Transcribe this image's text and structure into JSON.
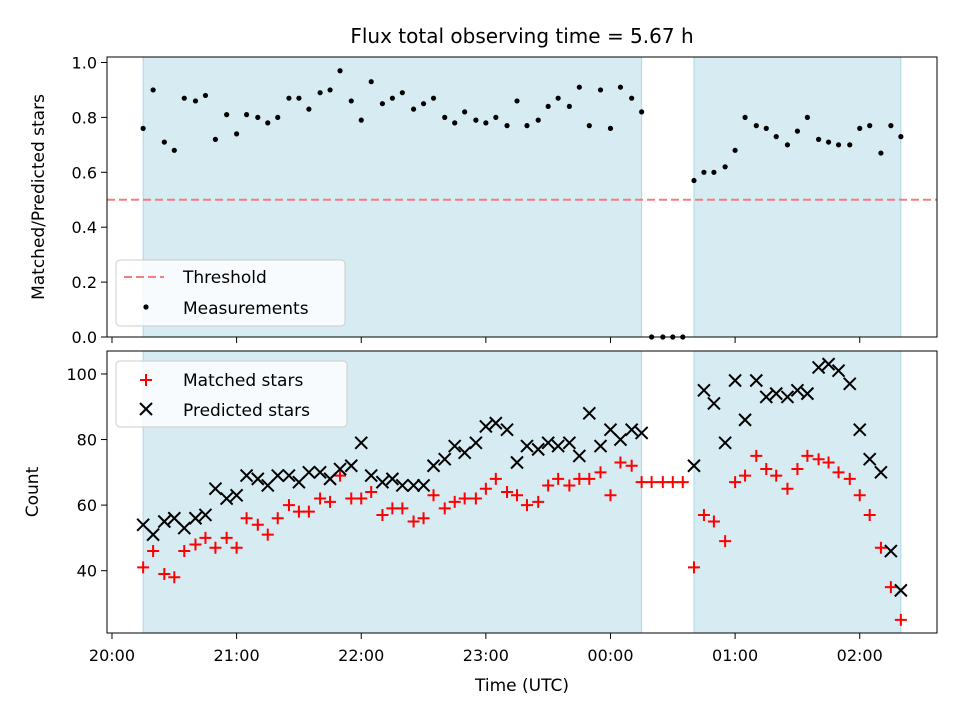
{
  "chart_data": {
    "title": "Flux total observing time = 5.67 h",
    "colors": {
      "observing_span": "#add8e6",
      "threshold": "#f08080",
      "measurements": "#000000",
      "matched": "#ff0000",
      "predicted": "#000000"
    },
    "x_axis": {
      "label": "Time (UTC)",
      "unit": "hours since 20:00 UTC",
      "range": [
        -0.04,
        6.62
      ],
      "ticks": [
        {
          "value": 0,
          "label": "20:00"
        },
        {
          "value": 1,
          "label": "21:00"
        },
        {
          "value": 2,
          "label": "22:00"
        },
        {
          "value": 3,
          "label": "23:00"
        },
        {
          "value": 4,
          "label": "00:00"
        },
        {
          "value": 5,
          "label": "01:00"
        },
        {
          "value": 6,
          "label": "02:00"
        }
      ]
    },
    "observing_spans": [
      [
        0.25,
        4.25
      ],
      [
        4.67,
        6.33
      ]
    ],
    "top_panel": {
      "type": "scatter",
      "ylabel": "Matched/Predicted stars",
      "ylim": [
        0,
        1.02
      ],
      "yticks": [
        {
          "value": 0,
          "label": "0.0"
        },
        {
          "value": 0.2,
          "label": "0.2"
        },
        {
          "value": 0.4,
          "label": "0.4"
        },
        {
          "value": 0.6,
          "label": "0.6"
        },
        {
          "value": 0.8,
          "label": "0.8"
        },
        {
          "value": 1.0,
          "label": "1.0"
        }
      ],
      "threshold": 0.5,
      "legend": {
        "position": "lower-left",
        "entries": [
          {
            "name": "Threshold",
            "marker": "dashed-line"
          },
          {
            "name": "Measurements",
            "marker": "dot"
          }
        ]
      },
      "measurements": {
        "x": [
          0.25,
          0.33,
          0.42,
          0.5,
          0.58,
          0.67,
          0.75,
          0.83,
          0.92,
          1.0,
          1.08,
          1.17,
          1.25,
          1.33,
          1.42,
          1.5,
          1.58,
          1.67,
          1.75,
          1.83,
          1.92,
          2.0,
          2.08,
          2.17,
          2.25,
          2.33,
          2.42,
          2.5,
          2.58,
          2.67,
          2.75,
          2.83,
          2.92,
          3.0,
          3.08,
          3.17,
          3.25,
          3.33,
          3.42,
          3.5,
          3.58,
          3.67,
          3.75,
          3.83,
          3.92,
          4.0,
          4.08,
          4.17,
          4.25,
          4.33,
          4.42,
          4.5,
          4.58,
          4.67,
          4.75,
          4.83,
          4.92,
          5.0,
          5.08,
          5.17,
          5.25,
          5.33,
          5.42,
          5.5,
          5.58,
          5.67,
          5.75,
          5.83,
          5.92,
          6.0,
          6.08,
          6.17,
          6.25,
          6.33
        ],
        "y": [
          0.76,
          0.9,
          0.71,
          0.68,
          0.87,
          0.86,
          0.88,
          0.72,
          0.81,
          0.74,
          0.81,
          0.8,
          0.78,
          0.8,
          0.87,
          0.87,
          0.83,
          0.89,
          0.9,
          0.97,
          0.86,
          0.79,
          0.93,
          0.85,
          0.87,
          0.89,
          0.83,
          0.85,
          0.87,
          0.8,
          0.78,
          0.82,
          0.79,
          0.78,
          0.8,
          0.77,
          0.86,
          0.77,
          0.79,
          0.84,
          0.87,
          0.84,
          0.91,
          0.77,
          0.9,
          0.76,
          0.91,
          0.87,
          0.82,
          0.0,
          0.0,
          0.0,
          0.0,
          0.57,
          0.6,
          0.6,
          0.62,
          0.68,
          0.8,
          0.77,
          0.76,
          0.73,
          0.7,
          0.75,
          0.8,
          0.72,
          0.71,
          0.7,
          0.7,
          0.76,
          0.77,
          0.67,
          0.77,
          0.73
        ]
      }
    },
    "bottom_panel": {
      "type": "scatter",
      "ylabel": "Count",
      "ylim": [
        21,
        107
      ],
      "yticks": [
        {
          "value": 40,
          "label": "40"
        },
        {
          "value": 60,
          "label": "60"
        },
        {
          "value": 80,
          "label": "80"
        },
        {
          "value": 100,
          "label": "100"
        }
      ],
      "legend": {
        "position": "upper-left",
        "entries": [
          {
            "name": "Matched stars",
            "marker": "plus"
          },
          {
            "name": "Predicted stars",
            "marker": "x"
          }
        ]
      },
      "series": [
        {
          "name": "Matched stars",
          "marker": "plus",
          "x": [
            0.25,
            0.33,
            0.42,
            0.5,
            0.58,
            0.67,
            0.75,
            0.83,
            0.92,
            1.0,
            1.08,
            1.17,
            1.25,
            1.33,
            1.42,
            1.5,
            1.58,
            1.67,
            1.75,
            1.83,
            1.92,
            2.0,
            2.08,
            2.17,
            2.25,
            2.33,
            2.42,
            2.5,
            2.58,
            2.67,
            2.75,
            2.83,
            2.92,
            3.0,
            3.08,
            3.17,
            3.25,
            3.33,
            3.42,
            3.5,
            3.58,
            3.67,
            3.75,
            3.83,
            3.92,
            4.0,
            4.08,
            4.17,
            4.25,
            4.33,
            4.42,
            4.5,
            4.58,
            4.67,
            4.75,
            4.83,
            4.92,
            5.0,
            5.08,
            5.17,
            5.25,
            5.33,
            5.42,
            5.5,
            5.58,
            5.67,
            5.75,
            5.83,
            5.92,
            6.0,
            6.08,
            6.17,
            6.25,
            6.33
          ],
          "y": [
            41,
            46,
            39,
            38,
            46,
            48,
            50,
            47,
            50,
            47,
            56,
            54,
            51,
            56,
            60,
            58,
            58,
            62,
            61,
            69,
            62,
            62,
            64,
            57,
            59,
            59,
            55,
            56,
            63,
            59,
            61,
            62,
            62,
            65,
            68,
            64,
            63,
            60,
            61,
            66,
            68,
            66,
            68,
            68,
            70,
            63,
            73,
            72,
            67,
            67,
            67,
            67,
            67,
            41,
            57,
            55,
            49,
            67,
            69,
            75,
            71,
            69,
            65,
            71,
            75,
            74,
            73,
            70,
            68,
            63,
            57,
            47,
            35,
            25
          ]
        },
        {
          "name": "Predicted stars",
          "marker": "x",
          "x": [
            0.25,
            0.33,
            0.42,
            0.5,
            0.58,
            0.67,
            0.75,
            0.83,
            0.92,
            1.0,
            1.08,
            1.17,
            1.25,
            1.33,
            1.42,
            1.5,
            1.58,
            1.67,
            1.75,
            1.83,
            1.92,
            2.0,
            2.08,
            2.17,
            2.25,
            2.33,
            2.42,
            2.5,
            2.58,
            2.67,
            2.75,
            2.83,
            2.92,
            3.0,
            3.08,
            3.17,
            3.25,
            3.33,
            3.42,
            3.5,
            3.58,
            3.67,
            3.75,
            3.83,
            3.92,
            4.0,
            4.08,
            4.17,
            4.25,
            4.67,
            4.75,
            4.83,
            4.92,
            5.0,
            5.08,
            5.17,
            5.25,
            5.33,
            5.42,
            5.5,
            5.58,
            5.67,
            5.75,
            5.83,
            5.92,
            6.0,
            6.08,
            6.17,
            6.25,
            6.33
          ],
          "y": [
            54,
            51,
            55,
            56,
            53,
            56,
            57,
            65,
            62,
            63,
            69,
            68,
            66,
            69,
            69,
            67,
            70,
            70,
            68,
            71,
            72,
            79,
            69,
            67,
            68,
            66,
            66,
            66,
            72,
            74,
            78,
            76,
            79,
            84,
            85,
            83,
            73,
            78,
            77,
            79,
            78,
            79,
            75,
            88,
            78,
            83,
            80,
            83,
            82,
            72,
            95,
            91,
            79,
            98,
            86,
            98,
            93,
            94,
            93,
            95,
            94,
            102,
            103,
            101,
            97,
            83,
            74,
            70,
            46,
            34
          ]
        }
      ]
    }
  }
}
